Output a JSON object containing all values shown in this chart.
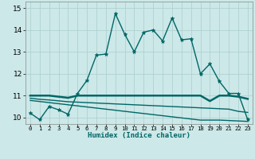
{
  "xlabel": "Humidex (Indice chaleur)",
  "ylabel": "",
  "xlim": [
    -0.5,
    23.5
  ],
  "ylim": [
    9.7,
    15.3
  ],
  "yticks": [
    10,
    11,
    12,
    13,
    14,
    15
  ],
  "xticks": [
    0,
    1,
    2,
    3,
    4,
    5,
    6,
    7,
    8,
    9,
    10,
    11,
    12,
    13,
    14,
    15,
    16,
    17,
    18,
    19,
    20,
    21,
    22,
    23
  ],
  "background_color": "#cce8e8",
  "grid_color": "#aacece",
  "line_color": "#006666",
  "lines": [
    {
      "x": [
        0,
        1,
        2,
        3,
        4,
        5,
        6,
        7,
        8,
        9,
        10,
        11,
        12,
        13,
        14,
        15,
        16,
        17,
        18,
        19,
        20,
        21,
        22,
        23
      ],
      "y": [
        10.2,
        9.9,
        10.5,
        10.35,
        10.15,
        11.1,
        11.7,
        12.85,
        12.9,
        14.75,
        13.8,
        13.0,
        13.9,
        14.0,
        13.5,
        14.55,
        13.55,
        13.6,
        12.0,
        12.45,
        11.65,
        11.1,
        11.1,
        9.9
      ],
      "marker": "*",
      "linewidth": 1.0,
      "markersize": 3.5
    },
    {
      "x": [
        0,
        1,
        2,
        3,
        4,
        5,
        6,
        7,
        8,
        9,
        10,
        11,
        12,
        13,
        14,
        15,
        16,
        17,
        18,
        19,
        20,
        21,
        22,
        23
      ],
      "y": [
        11.0,
        11.0,
        11.0,
        10.95,
        10.9,
        11.0,
        11.0,
        11.0,
        11.0,
        11.0,
        11.0,
        11.0,
        11.0,
        11.0,
        11.0,
        11.0,
        11.0,
        11.0,
        11.0,
        10.75,
        11.0,
        11.0,
        10.95,
        10.85
      ],
      "marker": null,
      "linewidth": 1.8,
      "markersize": 0
    },
    {
      "x": [
        0,
        1,
        2,
        3,
        4,
        5,
        6,
        7,
        8,
        9,
        10,
        11,
        12,
        13,
        14,
        15,
        16,
        17,
        18,
        19,
        20,
        21,
        22,
        23
      ],
      "y": [
        10.78,
        10.73,
        10.68,
        10.63,
        10.58,
        10.53,
        10.48,
        10.43,
        10.38,
        10.33,
        10.28,
        10.23,
        10.18,
        10.13,
        10.08,
        10.03,
        9.98,
        9.93,
        9.88,
        9.88,
        9.88,
        9.86,
        9.84,
        9.82
      ],
      "marker": null,
      "linewidth": 1.0,
      "markersize": 0
    },
    {
      "x": [
        0,
        1,
        2,
        3,
        4,
        5,
        6,
        7,
        8,
        9,
        10,
        11,
        12,
        13,
        14,
        15,
        16,
        17,
        18,
        19,
        20,
        21,
        22,
        23
      ],
      "y": [
        10.88,
        10.83,
        10.8,
        10.76,
        10.72,
        10.7,
        10.68,
        10.66,
        10.64,
        10.62,
        10.6,
        10.58,
        10.56,
        10.54,
        10.52,
        10.5,
        10.48,
        10.46,
        10.44,
        10.42,
        10.4,
        10.38,
        10.28,
        10.23
      ],
      "marker": null,
      "linewidth": 1.0,
      "markersize": 0
    }
  ]
}
